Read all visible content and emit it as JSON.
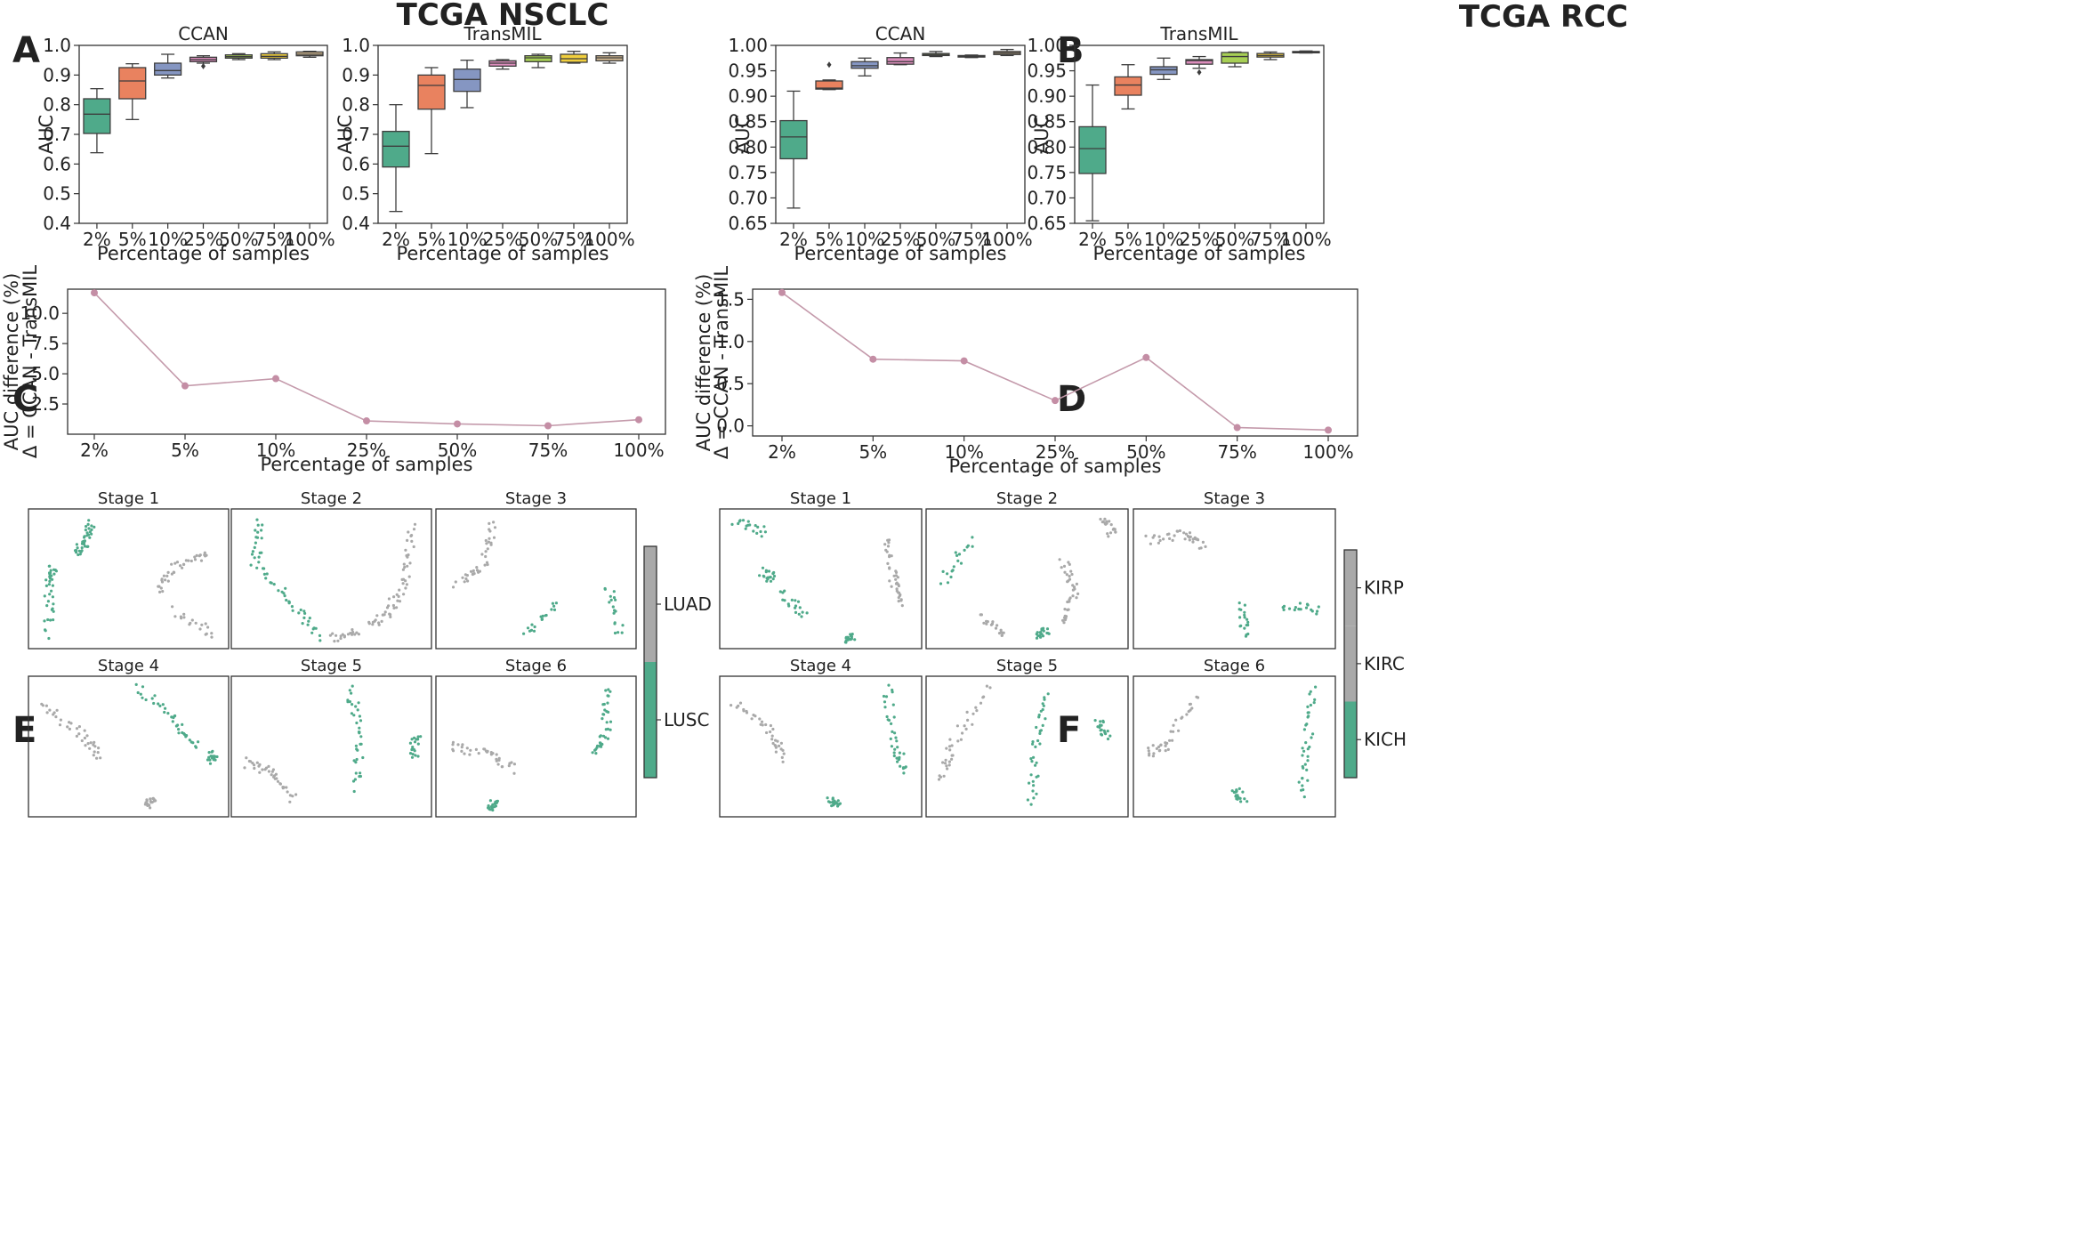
{
  "titles": {
    "left": "TCGA NSCLC",
    "right": "TCGA RCC"
  },
  "panel_letters": [
    "A",
    "B",
    "C",
    "D",
    "E",
    "F"
  ],
  "box_palette": [
    "#4faa8a",
    "#e9825f",
    "#8596c2",
    "#dc8dbc",
    "#a7cf55",
    "#f1cf3e",
    "#d2b890"
  ],
  "line_color": "#c49aab",
  "marker_color": "#c48ea5",
  "scatter_colors": {
    "grey": "#a9a9a9",
    "green": "#4faa8a"
  },
  "chart_data": [
    {
      "id": "A-CCAN",
      "type": "box",
      "panel": "A",
      "title": "CCAN",
      "xlabel": "Percentage of samples",
      "ylabel": "AUC",
      "categories": [
        "2%",
        "5%",
        "10%",
        "25%",
        "50%",
        "75%",
        "100%"
      ],
      "ylim": [
        0.4,
        1.0
      ],
      "yticks": [
        "0.4",
        "0.5",
        "0.6",
        "0.7",
        "0.8",
        "0.9",
        "1.0"
      ],
      "yticks_num": [
        0.4,
        0.5,
        0.6,
        0.7,
        0.8,
        0.9,
        1.0
      ],
      "boxes": [
        {
          "min": 0.638,
          "q1": 0.703,
          "med": 0.768,
          "q3": 0.82,
          "max": 0.854
        },
        {
          "min": 0.75,
          "q1": 0.82,
          "med": 0.88,
          "q3": 0.925,
          "max": 0.938
        },
        {
          "min": 0.89,
          "q1": 0.9,
          "med": 0.915,
          "q3": 0.94,
          "max": 0.97
        },
        {
          "min": 0.94,
          "q1": 0.945,
          "med": 0.952,
          "q3": 0.96,
          "max": 0.965,
          "outliers": [
            0.93
          ]
        },
        {
          "min": 0.952,
          "q1": 0.957,
          "med": 0.962,
          "q3": 0.968,
          "max": 0.972
        },
        {
          "min": 0.952,
          "q1": 0.957,
          "med": 0.963,
          "q3": 0.972,
          "max": 0.978
        },
        {
          "min": 0.96,
          "q1": 0.965,
          "med": 0.97,
          "q3": 0.978,
          "max": 0.98
        }
      ]
    },
    {
      "id": "A-TransMIL",
      "type": "box",
      "panel": "A",
      "title": "TransMIL",
      "xlabel": "Percentage of samples",
      "ylabel": "AUC",
      "categories": [
        "2%",
        "5%",
        "10%",
        "25%",
        "50%",
        "75%",
        "100%"
      ],
      "ylim": [
        0.4,
        1.0
      ],
      "yticks": [
        "0.4",
        "0.5",
        "0.6",
        "0.7",
        "0.8",
        "0.9",
        "1.0"
      ],
      "yticks_num": [
        0.4,
        0.5,
        0.6,
        0.7,
        0.8,
        0.9,
        1.0
      ],
      "boxes": [
        {
          "min": 0.44,
          "q1": 0.59,
          "med": 0.66,
          "q3": 0.71,
          "max": 0.8
        },
        {
          "min": 0.635,
          "q1": 0.785,
          "med": 0.865,
          "q3": 0.9,
          "max": 0.925
        },
        {
          "min": 0.79,
          "q1": 0.845,
          "med": 0.885,
          "q3": 0.92,
          "max": 0.95
        },
        {
          "min": 0.92,
          "q1": 0.93,
          "med": 0.94,
          "q3": 0.948,
          "max": 0.952
        },
        {
          "min": 0.925,
          "q1": 0.945,
          "med": 0.958,
          "q3": 0.965,
          "max": 0.97
        },
        {
          "min": 0.94,
          "q1": 0.943,
          "med": 0.955,
          "q3": 0.97,
          "max": 0.98
        },
        {
          "min": 0.94,
          "q1": 0.948,
          "med": 0.958,
          "q3": 0.965,
          "max": 0.975
        }
      ]
    },
    {
      "id": "B-CCAN",
      "type": "box",
      "panel": "B",
      "title": "CCAN",
      "xlabel": "Percentage of samples",
      "ylabel": "AUC",
      "categories": [
        "2%",
        "5%",
        "10%",
        "25%",
        "50%",
        "75%",
        "100%"
      ],
      "ylim": [
        0.65,
        1.0
      ],
      "yticks": [
        "0.65",
        "0.70",
        "0.75",
        "0.80",
        "0.85",
        "0.90",
        "0.95",
        "1.00"
      ],
      "yticks_num": [
        0.65,
        0.7,
        0.75,
        0.8,
        0.85,
        0.9,
        0.95,
        1.0
      ],
      "boxes": [
        {
          "min": 0.68,
          "q1": 0.777,
          "med": 0.82,
          "q3": 0.852,
          "max": 0.91
        },
        {
          "min": 0.913,
          "q1": 0.914,
          "med": 0.916,
          "q3": 0.93,
          "max": 0.932,
          "outliers": [
            0.962
          ]
        },
        {
          "min": 0.94,
          "q1": 0.955,
          "med": 0.96,
          "q3": 0.968,
          "max": 0.975
        },
        {
          "min": 0.962,
          "q1": 0.963,
          "med": 0.968,
          "q3": 0.976,
          "max": 0.985
        },
        {
          "min": 0.978,
          "q1": 0.98,
          "med": 0.982,
          "q3": 0.984,
          "max": 0.988
        },
        {
          "min": 0.976,
          "q1": 0.977,
          "med": 0.979,
          "q3": 0.98,
          "max": 0.981
        },
        {
          "min": 0.98,
          "q1": 0.982,
          "med": 0.985,
          "q3": 0.988,
          "max": 0.992
        }
      ]
    },
    {
      "id": "B-TransMIL",
      "type": "box",
      "panel": "B",
      "title": "TransMIL",
      "xlabel": "Percentage of samples",
      "ylabel": "AUC",
      "categories": [
        "2%",
        "5%",
        "10%",
        "25%",
        "50%",
        "75%",
        "100%"
      ],
      "ylim": [
        0.65,
        1.0
      ],
      "yticks": [
        "0.65",
        "0.70",
        "0.75",
        "0.80",
        "0.85",
        "0.90",
        "0.95",
        "1.00"
      ],
      "yticks_num": [
        0.65,
        0.7,
        0.75,
        0.8,
        0.85,
        0.9,
        0.95,
        1.0
      ],
      "boxes": [
        {
          "min": 0.655,
          "q1": 0.748,
          "med": 0.797,
          "q3": 0.84,
          "max": 0.922
        },
        {
          "min": 0.875,
          "q1": 0.902,
          "med": 0.922,
          "q3": 0.938,
          "max": 0.962
        },
        {
          "min": 0.933,
          "q1": 0.943,
          "med": 0.952,
          "q3": 0.958,
          "max": 0.975
        },
        {
          "min": 0.955,
          "q1": 0.963,
          "med": 0.97,
          "q3": 0.972,
          "max": 0.978,
          "outliers": [
            0.947
          ]
        },
        {
          "min": 0.958,
          "q1": 0.965,
          "med": 0.978,
          "q3": 0.986,
          "max": 0.987
        },
        {
          "min": 0.972,
          "q1": 0.977,
          "med": 0.98,
          "q3": 0.984,
          "max": 0.987
        },
        {
          "min": 0.985,
          "q1": 0.986,
          "med": 0.987,
          "q3": 0.988,
          "max": 0.989
        }
      ]
    },
    {
      "id": "C",
      "type": "line",
      "panel": "C",
      "title": "",
      "xlabel": "Percentage of samples",
      "ylabel_lines": [
        "AUC difference (%)",
        "Δ = CCAN - TransMIL"
      ],
      "categories": [
        "2%",
        "5%",
        "10%",
        "25%",
        "50%",
        "75%",
        "100%"
      ],
      "values": [
        11.7,
        4.0,
        4.6,
        1.1,
        0.85,
        0.7,
        1.2
      ],
      "ylim": [
        0.0,
        12.0
      ],
      "yticks": [
        "2.5",
        "5.0",
        "7.5",
        "10.0"
      ],
      "yticks_num": [
        2.5,
        5.0,
        7.5,
        10.0
      ]
    },
    {
      "id": "D",
      "type": "line",
      "panel": "D",
      "title": "",
      "xlabel": "Percentage of samples",
      "ylabel_lines": [
        "AUC difference (%)",
        "Δ = CCAN - TransMIL"
      ],
      "categories": [
        "2%",
        "5%",
        "10%",
        "25%",
        "50%",
        "75%",
        "100%"
      ],
      "values": [
        1.58,
        0.79,
        0.77,
        0.3,
        0.81,
        -0.02,
        -0.05
      ],
      "ylim": [
        -0.12,
        1.62
      ],
      "yticks": [
        "0.0",
        "0.5",
        "1.0",
        "1.5"
      ],
      "yticks_num": [
        0.0,
        0.5,
        1.0,
        1.5
      ]
    },
    {
      "id": "E",
      "type": "scatter",
      "panel": "E",
      "stages": [
        "Stage 1",
        "Stage 2",
        "Stage 3",
        "Stage 4",
        "Stage 5",
        "Stage 6"
      ],
      "legend_labels": [
        "LUAD",
        "LUSC"
      ],
      "legend_fractions": [
        0.5,
        0.5
      ]
    },
    {
      "id": "F",
      "type": "scatter",
      "panel": "F",
      "stages": [
        "Stage 1",
        "Stage 2",
        "Stage 3",
        "Stage 4",
        "Stage 5",
        "Stage 6"
      ],
      "legend_labels": [
        "KIRP",
        "KIRC",
        "KICH"
      ],
      "legend_fractions": [
        0.333,
        0.333,
        0.334
      ]
    }
  ]
}
